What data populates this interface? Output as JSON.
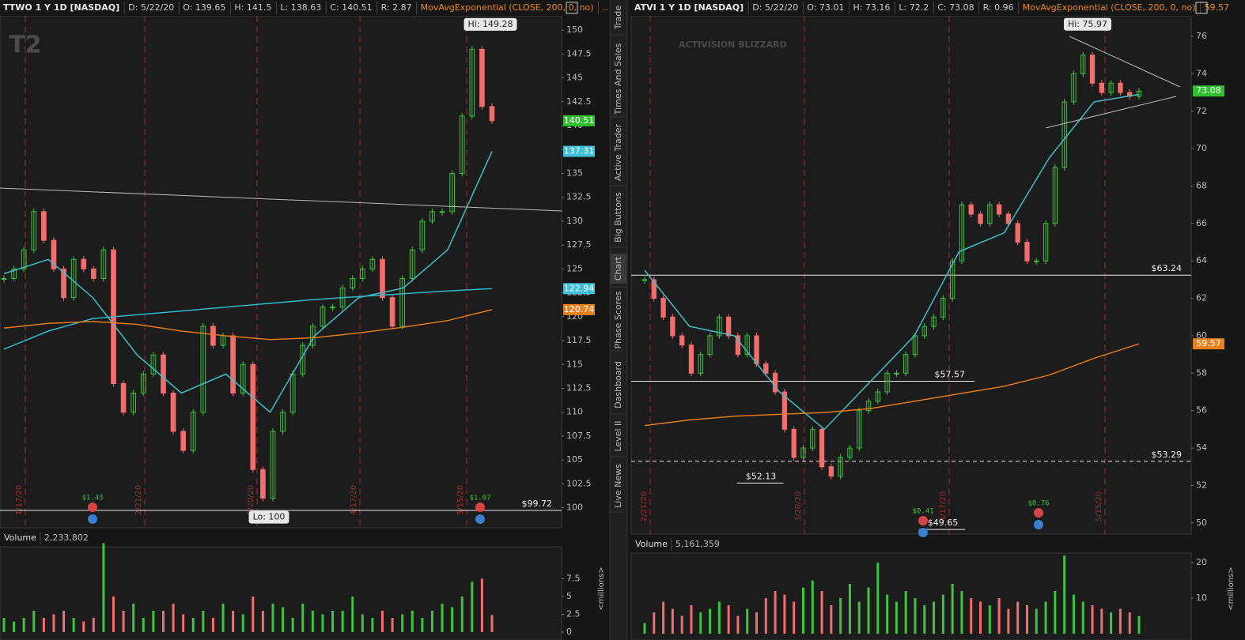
{
  "sidebar_tabs": [
    "Trade",
    "Times And Sales",
    "Active Trader",
    "Big Buttons",
    "Chart",
    "Phase Scores",
    "Dashboard",
    "Level II",
    "Live News"
  ],
  "active_tab": 4,
  "charts": [
    {
      "type": "candlestick",
      "header": [
        "TTWO 1 Y 1D [NASDAQ]",
        "D: 5/22/20",
        "O: 139.65",
        "H: 141.5",
        "L: 138.63",
        "C: 140.51",
        "R: 2.87"
      ],
      "study": "MovAvgExponential (CLOSE, 200, 0, no)",
      "study_value": "..",
      "logo": "T2",
      "ylim": [
        97.9,
        151.5
      ],
      "yticks": [
        100,
        102.5,
        105,
        107.5,
        110,
        112.5,
        115,
        117.5,
        120,
        122.5,
        125,
        127.5,
        130,
        132.5,
        135,
        137.5,
        140,
        142.5,
        145,
        147.5,
        150
      ],
      "closes": [
        124,
        125,
        127,
        131,
        128,
        125,
        122,
        126,
        125,
        124,
        127,
        113,
        110,
        112,
        114,
        116,
        112,
        108,
        106,
        110,
        119,
        117,
        118,
        112,
        115,
        104,
        101,
        108,
        110,
        114,
        117,
        119,
        121,
        121,
        123,
        124,
        125,
        126,
        122,
        119,
        124,
        127,
        130,
        131,
        131,
        135,
        141,
        148,
        142,
        140.51
      ],
      "up_color": "#3ec43e",
      "down_color": "#f26d6d",
      "lines": [
        {
          "name": "EMA fast",
          "color": "#3ec0c8",
          "values": [
            124.5,
            126,
            122,
            116,
            112,
            114,
            110,
            118,
            122,
            123,
            127,
            137.31
          ]
        },
        {
          "name": "EMA slow",
          "color": "#2fb8c8",
          "values": [
            116.6,
            118.5,
            119.8,
            120.2,
            120.6,
            121,
            121.4,
            121.8,
            122.1,
            122.4,
            122.7,
            122.94
          ]
        },
        {
          "name": "EMA 200",
          "color": "#e07b1a",
          "values": [
            118.8,
            119.3,
            119.5,
            119.2,
            118.5,
            118,
            117.6,
            117.8,
            118.3,
            118.9,
            119.6,
            120.74
          ]
        }
      ],
      "badges": [
        {
          "value": 140.51,
          "color": "#2fbf2f"
        },
        {
          "value": 137.31,
          "color": "#3ec0d8"
        },
        {
          "value": 122.94,
          "color": "#3ec0d8"
        },
        {
          "value": 120.74,
          "color": "#e8821f"
        }
      ],
      "levels": [
        {
          "value": 99.72,
          "label": "$99.72",
          "style": "solid"
        }
      ],
      "callouts": [
        {
          "value": 149.28,
          "label": "Hi: 149.28"
        },
        {
          "value": 100,
          "label": "Lo: 100"
        }
      ],
      "earnings": [
        "$1.43",
        "$1.07"
      ],
      "dates": [
        "1/17/20",
        "2/21/20",
        "3/20/20",
        "4/17/20",
        "5/15/20"
      ],
      "volume_label": "Volume",
      "volume_total": "2,233,802",
      "volume_unit": "<millions>",
      "vol_ylim": [
        0,
        12
      ],
      "vol_yticks": [
        0,
        2.5,
        5,
        7.5
      ],
      "volumes": [
        2,
        1.5,
        2,
        3,
        2,
        2.5,
        3,
        2,
        1.5,
        2,
        12.5,
        5,
        3,
        4,
        2,
        3,
        3,
        4,
        2.5,
        2,
        3,
        2,
        4,
        3,
        2.5,
        5,
        3,
        4,
        3.5,
        2,
        4,
        3,
        2.5,
        3,
        3,
        5,
        2.5,
        2,
        3,
        2,
        2.5,
        3,
        2,
        3,
        4,
        3.5,
        5,
        7.1,
        7.5,
        2.4
      ]
    },
    {
      "type": "candlestick",
      "header": [
        "ATVI 1 Y 1D [NASDAQ]",
        "D: 5/22/20",
        "O: 73.01",
        "H: 73.16",
        "L: 72.2",
        "C: 73.08",
        "R: 0.96"
      ],
      "study": "MovAvgExponential (CLOSE, 200, 0, no)",
      "study_value": "59.57",
      "logo": "ACTIVISION BLIZZARD",
      "ylim": [
        49.4,
        77.1
      ],
      "yticks": [
        50,
        52,
        54,
        56,
        58,
        60,
        62,
        64,
        66,
        68,
        70,
        72,
        74,
        76
      ],
      "closes": [
        63,
        62,
        61,
        60,
        59.5,
        58,
        59,
        60,
        61,
        60,
        59,
        60,
        58.5,
        58,
        57,
        55,
        53.5,
        54,
        55,
        53,
        52.5,
        53.5,
        54,
        56,
        56.5,
        57,
        58,
        58,
        59,
        60,
        60.5,
        61,
        62,
        64,
        67,
        66.5,
        66,
        67,
        66.5,
        66,
        65,
        64,
        64,
        66,
        69,
        72.5,
        74,
        75,
        73.5,
        73,
        73.5,
        73,
        72.8,
        73.08
      ],
      "up_color": "#3ec43e",
      "down_color": "#f26d6d",
      "lines": [
        {
          "name": "EMA fast",
          "color": "#3ec0c8",
          "values": [
            63.5,
            60.5,
            60,
            57,
            55,
            57.5,
            60,
            64.5,
            65.5,
            69.5,
            72.5,
            72.9
          ]
        },
        {
          "name": "EMA 200",
          "color": "#e07b1a",
          "values": [
            55.2,
            55.5,
            55.7,
            55.8,
            55.9,
            56.1,
            56.5,
            56.9,
            57.3,
            57.9,
            58.8,
            59.57
          ]
        }
      ],
      "badges": [
        {
          "value": 73.08,
          "color": "#2fbf2f"
        },
        {
          "value": 59.57,
          "color": "#e8821f"
        }
      ],
      "levels": [
        {
          "value": 63.24,
          "label": "$63.24",
          "style": "solid"
        },
        {
          "value": 57.57,
          "label": "$57.57",
          "style": "solid"
        },
        {
          "value": 53.29,
          "label": "$53.29",
          "style": "dashed"
        }
      ],
      "callouts": [
        {
          "value": 75.97,
          "label": "Hi: 75.97"
        },
        {
          "value": 52.13,
          "label": "$52.13"
        },
        {
          "value": 49.65,
          "label": "$49.65"
        }
      ],
      "earnings": [
        "$0.41",
        "$0.76"
      ],
      "dates": [
        "2/21/20",
        "3/20/20",
        "4/17/20",
        "5/15/20"
      ],
      "volume_label": "Volume",
      "volume_total": "5,161,359",
      "volume_unit": "<millions>",
      "vol_ylim": [
        0,
        22.7
      ],
      "vol_yticks": [
        10,
        20
      ],
      "volumes": [
        3,
        6,
        9,
        7,
        5,
        8,
        6,
        7,
        9,
        8,
        5,
        7,
        6,
        10,
        12,
        11,
        9,
        13,
        15,
        12,
        8,
        10,
        14,
        9,
        13,
        20,
        11,
        9,
        12,
        10,
        8,
        9,
        11,
        14,
        12,
        10,
        9,
        8,
        10,
        7,
        9,
        8,
        7,
        9,
        12,
        22,
        11,
        9,
        8,
        7,
        6,
        7,
        6,
        5
      ]
    }
  ]
}
